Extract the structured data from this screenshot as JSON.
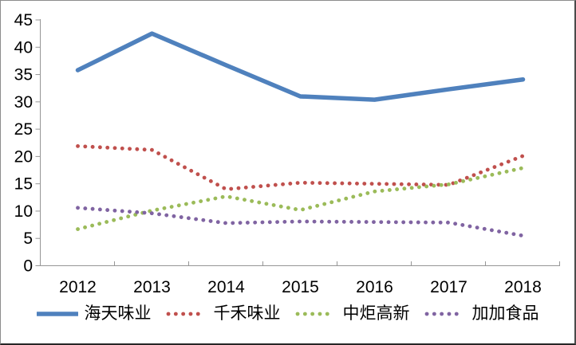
{
  "chart": {
    "background": "#FFFFFF",
    "axis_color": "#969696",
    "text_color": "#000000",
    "border_color": "#4A4A4A"
  },
  "chart_data": {
    "type": "line",
    "title": "",
    "xlabel": "",
    "ylabel": "",
    "categories": [
      "2012",
      "2013",
      "2014",
      "2015",
      "2016",
      "2017",
      "2018"
    ],
    "series": [
      {
        "name": "海天味业",
        "color": "#4F81BD",
        "style": "solid",
        "values": [
          35.8,
          42.5,
          36.7,
          31.0,
          30.4,
          32.3,
          34.1
        ]
      },
      {
        "name": "千禾味业",
        "color": "#C0504D",
        "style": "dotted",
        "values": [
          21.9,
          21.2,
          14.0,
          15.2,
          15.0,
          14.8,
          20.1
        ]
      },
      {
        "name": "中炬高新",
        "color": "#9BBB59",
        "style": "dotted",
        "values": [
          6.7,
          10.1,
          12.7,
          10.2,
          13.6,
          14.9,
          17.9
        ]
      },
      {
        "name": "加加食品",
        "color": "#8064A2",
        "style": "dotted",
        "values": [
          10.6,
          9.6,
          7.8,
          8.1,
          8.0,
          7.9,
          5.5
        ]
      }
    ],
    "y_ticks": [
      0,
      5,
      10,
      15,
      20,
      25,
      30,
      35,
      40,
      45
    ],
    "ylim": [
      0,
      45
    ],
    "grid": false,
    "legend_position": "bottom"
  }
}
